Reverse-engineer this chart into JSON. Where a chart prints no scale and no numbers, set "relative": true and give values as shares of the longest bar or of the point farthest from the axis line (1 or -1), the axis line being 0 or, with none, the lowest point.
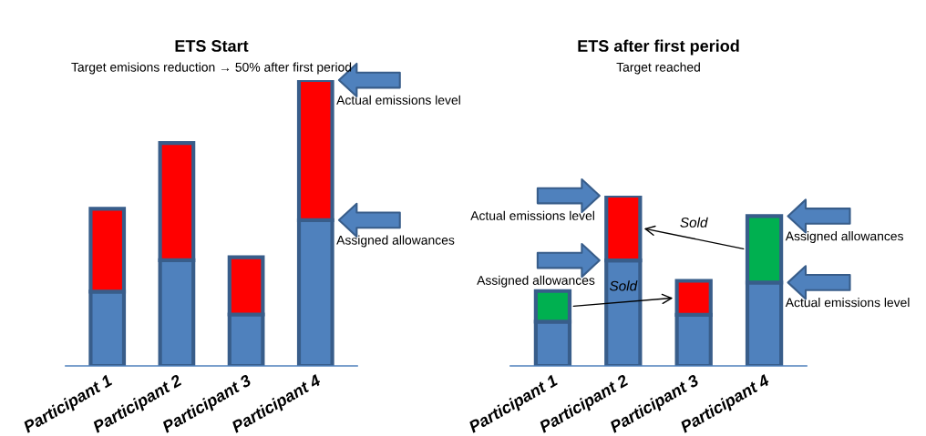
{
  "chart_data": [
    {
      "type": "bar",
      "title": "ETS Start",
      "subtitle": "Target emisions reduction → 50% after first period",
      "relative": true,
      "stacked": true,
      "grid": false,
      "legend": false,
      "categories": [
        "Participant 1",
        "Participant 2",
        "Participant 3",
        "Participant 4"
      ],
      "series": [
        {
          "color": "#4f81bd",
          "values": [
            0.26,
            0.37,
            0.18,
            0.51
          ]
        },
        {
          "colors": [
            "#ff0000",
            "#ff0000",
            "#ff0000",
            "#ff0000"
          ],
          "values": [
            0.29,
            0.41,
            0.2,
            0.49
          ]
        }
      ],
      "annotations": [
        {
          "text": "Actual emissions level",
          "x": "Participant 4",
          "y": 1.0
        },
        {
          "text": "Assigned allowances",
          "x": "Participant 4",
          "y": 0.51
        }
      ]
    },
    {
      "type": "bar",
      "title": "ETS after first period",
      "subtitle": "Target reached",
      "relative": true,
      "stacked": true,
      "grid": false,
      "legend": false,
      "categories": [
        "Participant 1",
        "Participant 2",
        "Participant 3",
        "Participant 4"
      ],
      "series": [
        {
          "color": "#4f81bd",
          "values": [
            0.26,
            0.62,
            0.3,
            0.49
          ]
        },
        {
          "colors": [
            "#00b050",
            "#ff0000",
            "#ff0000",
            "#00b050"
          ],
          "values": [
            0.18,
            0.38,
            0.2,
            0.39
          ]
        }
      ],
      "annotations": [
        {
          "text": "Actual emissions level",
          "x": "Participant 2",
          "y": 1.0
        },
        {
          "text": "Assigned allowances",
          "x": "Participant 2",
          "y": 0.62
        },
        {
          "text": "Assigned allowances",
          "x": "Participant 4",
          "y": 0.88
        },
        {
          "text": "Actual emissions level",
          "x": "Participant 4",
          "y": 0.49
        },
        "Sold",
        "Sold"
      ]
    }
  ]
}
